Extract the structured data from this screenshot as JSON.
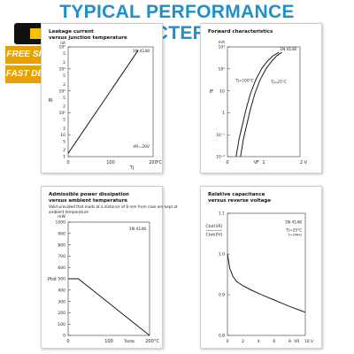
{
  "page": {
    "title": "TYPICAL PERFORMANCE CHARACTERISTICS"
  },
  "badge": {
    "line1": "FREE SHIPPING",
    "line2": "FAST DELIVERY"
  },
  "colors": {
    "title": "#1f8fc8",
    "badge": "#e8a100",
    "line": "#1a1a1a"
  },
  "chart_data": [
    {
      "type": "line",
      "title": "Leakage current",
      "subtitle": "versus junction temperature",
      "legend": "1N 4148",
      "annotation": "VR=20V",
      "ylabel": "IR",
      "xlabel": "Tj",
      "x_unit": "°C",
      "y_unit": "nA",
      "scale_y": "log",
      "xlim": [
        0,
        200
      ],
      "ylim_exp": [
        0,
        5
      ],
      "x_ticks": [
        "0",
        "100",
        "200"
      ],
      "y_tick_labels": [
        "1",
        "2",
        "5",
        "10",
        "2",
        "5",
        "10²",
        "2",
        "5",
        "10³",
        "2",
        "5",
        "10⁴",
        "2",
        "5",
        "10⁵"
      ],
      "series": [
        {
          "x": [
            0,
            165
          ],
          "y_exp": [
            0.15,
            4.85
          ]
        }
      ]
    },
    {
      "type": "line",
      "title": "Forward characteristics",
      "legend": "1N 4148",
      "ylabel": "IF",
      "xlabel": "VF",
      "x_unit": "V",
      "y_unit": "mA",
      "scale_y": "log",
      "xlim": [
        0,
        2
      ],
      "ylim_exp": [
        -2,
        3
      ],
      "x_ticks": [
        "0",
        "1",
        "2 V"
      ],
      "y_ticks": [
        "10⁻²",
        "10⁻¹",
        "1",
        "10",
        "10²",
        "10³"
      ],
      "series": [
        {
          "name": "Tj=25°C",
          "x": [
            0.36,
            0.44,
            0.54,
            0.64,
            0.76,
            0.9,
            1.06,
            1.22,
            1.36,
            1.5
          ],
          "y_exp": [
            -2,
            -1.2,
            -0.5,
            0.2,
            0.9,
            1.5,
            2.0,
            2.35,
            2.6,
            2.75
          ]
        },
        {
          "name": "Tj=100°C",
          "x": [
            0.24,
            0.32,
            0.42,
            0.52,
            0.64,
            0.78,
            0.94,
            1.1,
            1.26,
            1.42
          ],
          "y_exp": [
            -2,
            -1.2,
            -0.5,
            0.2,
            0.9,
            1.5,
            2.0,
            2.35,
            2.6,
            2.75
          ]
        }
      ]
    },
    {
      "type": "line",
      "title": "Admissible power dissipation",
      "subtitle": "versus ambient temperature",
      "note": "Valid provided that leads at a distance of 8 mm from case are kept at ambient temperature",
      "legend": "1N 4148",
      "ylabel": "Ptot",
      "xlabel": "Tamb",
      "y_unit": "mW",
      "x_unit": "°C",
      "xlim": [
        0,
        200
      ],
      "ylim": [
        0,
        1000
      ],
      "x_ticks": [
        "0",
        "100",
        "200"
      ],
      "y_ticks": [
        "0",
        "100",
        "200",
        "300",
        "400",
        "500",
        "600",
        "700",
        "800",
        "900",
        "1000"
      ],
      "series": [
        {
          "x": [
            0,
            25,
            200
          ],
          "y": [
            500,
            500,
            0
          ]
        }
      ]
    },
    {
      "type": "line",
      "title": "Relative capacitance",
      "subtitle": "versus reverse voltage",
      "legend": "1N 4148",
      "annotation_lines": [
        "Tj=25°C",
        "f=1MHz"
      ],
      "ylabel_top": "Ctot(VR)",
      "ylabel_bottom": "Ctot(0V)",
      "xlabel": "VR",
      "xlim": [
        0,
        10
      ],
      "ylim": [
        0.8,
        1.1
      ],
      "x_ticks": [
        "0",
        "2",
        "4",
        "6",
        "8",
        "10 V"
      ],
      "y_ticks": [
        "0.8",
        "0.9",
        "1.0",
        "1.1"
      ],
      "series": [
        {
          "x": [
            0,
            0.3,
            0.7,
            1.2,
            2,
            3,
            4,
            5,
            6,
            7,
            8,
            9,
            10
          ],
          "y": [
            1.0,
            0.965,
            0.945,
            0.932,
            0.922,
            0.912,
            0.903,
            0.895,
            0.887,
            0.879,
            0.871,
            0.864,
            0.857
          ]
        }
      ]
    }
  ]
}
